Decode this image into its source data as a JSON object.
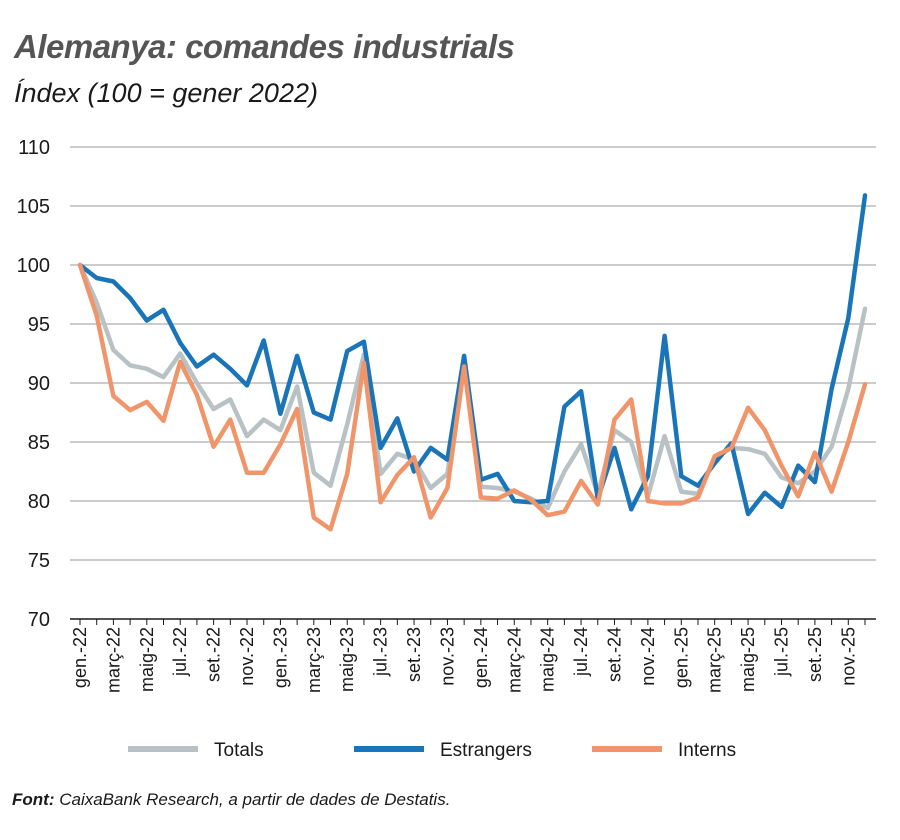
{
  "header": {
    "title": "Alemanya: comandes industrials",
    "subtitle": "Índex (100 = gener 2022)"
  },
  "source": {
    "label": "Font:",
    "text": " CaixaBank Research, a partir de dades de Destatis."
  },
  "chart_data": {
    "type": "line",
    "title": "Alemanya: comandes industrials",
    "subtitle": "Índex (100 = gener 2022)",
    "ylim": [
      70,
      110
    ],
    "yticks": [
      70,
      75,
      80,
      85,
      90,
      95,
      100,
      105,
      110
    ],
    "grid": "horizontal",
    "legend_position": "bottom",
    "x": [
      "gen.-22",
      "febr.-22",
      "març-22",
      "abr.-22",
      "maig-22",
      "juny-22",
      "jul.-22",
      "ag.-22",
      "set.-22",
      "oct.-22",
      "nov.-22",
      "des.-22",
      "gen.-23",
      "febr.-23",
      "març-23",
      "abr.-23",
      "maig-23",
      "juny-23",
      "jul.-23",
      "ag.-23",
      "set.-23",
      "oct.-23",
      "nov.-23",
      "des.-23",
      "gen.-24",
      "febr.-24",
      "març-24",
      "abr.-24",
      "maig-24",
      "juny-24",
      "jul.-24",
      "ag.-24",
      "set.-24",
      "oct.-24",
      "nov.-24",
      "des.-24",
      "gen.-25",
      "febr.-25",
      "març-25",
      "abr.-25",
      "maig-25",
      "juny-25",
      "jul.-25",
      "ag.-25",
      "set.-25",
      "oct.-25",
      "nov.-25",
      "des.-25"
    ],
    "xtick_labels": [
      "gen.-22",
      "març-22",
      "maig-22",
      "jul.-22",
      "set.-22",
      "nov.-22",
      "gen.-23",
      "març-23",
      "maig-23",
      "jul.-23",
      "set.-23",
      "nov.-23",
      "gen.-24",
      "març-24",
      "maig-24",
      "jul.-24",
      "set.-24",
      "nov.-24",
      "gen.-25",
      "març-25",
      "maig-25",
      "jul.-25",
      "set.-25",
      "nov.-25"
    ],
    "series": [
      {
        "name": "Totals",
        "color": "#b8c1c4",
        "values": [
          100,
          96.8,
          92.8,
          91.5,
          91.2,
          90.5,
          92.5,
          90,
          87.8,
          88.6,
          85.5,
          86.9,
          86,
          89.7,
          82.4,
          81.3,
          86.5,
          92.4,
          82.3,
          84,
          83.5,
          81.1,
          82.3,
          91.8,
          81.2,
          81.1,
          80.8,
          80.2,
          79.4,
          82.5,
          84.8,
          80.6,
          86,
          85,
          80.4,
          85.5,
          80.8,
          80.6,
          83.6,
          84.5,
          84.4,
          84,
          82,
          81.5,
          82.5,
          84.6,
          89.5,
          96.3
        ]
      },
      {
        "name": "Estrangers",
        "color": "#1a75b8",
        "values": [
          100,
          98.9,
          98.6,
          97.2,
          95.3,
          96.2,
          93.4,
          91.4,
          92.4,
          91.2,
          89.8,
          93.6,
          87.4,
          92.3,
          87.5,
          86.9,
          92.7,
          93.5,
          84.5,
          87,
          82.5,
          84.5,
          83.5,
          92.3,
          81.8,
          82.3,
          80,
          79.9,
          80,
          88,
          89.3,
          80.2,
          84.5,
          79.3,
          82.1,
          94,
          82.1,
          81.3,
          83.2,
          84.9,
          78.9,
          80.7,
          79.5,
          83,
          81.6,
          89.5,
          95.5,
          105.9
        ]
      },
      {
        "name": "Interns",
        "color": "#f0956a",
        "values": [
          100,
          95.7,
          88.9,
          87.7,
          88.4,
          86.8,
          91.8,
          89,
          84.6,
          86.9,
          82.4,
          82.4,
          84.8,
          87.8,
          78.6,
          77.6,
          82.3,
          91.7,
          79.9,
          82.2,
          83.7,
          78.6,
          81.1,
          91.4,
          80.3,
          80.2,
          80.9,
          80.1,
          78.8,
          79.1,
          81.7,
          79.7,
          86.9,
          88.6,
          80,
          79.8,
          79.8,
          80.3,
          83.8,
          84.5,
          87.9,
          86,
          83,
          80.4,
          84.1,
          80.8,
          85,
          89.9
        ]
      }
    ]
  }
}
